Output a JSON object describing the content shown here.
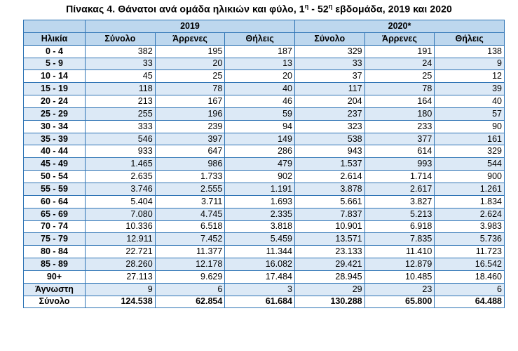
{
  "title": {
    "prefix": "Πίνακας 4. Θάνατοι ανά ομάδα ηλικιών και φύλο, 1",
    "sup1": "η",
    "middle": " - 52",
    "sup2": "η",
    "suffix": " εβδομάδα, 2019 και 2020"
  },
  "header": {
    "year1": "2019",
    "year2": "2020*",
    "age": "Ηλικία",
    "total": "Σύνολο",
    "male": "Άρρενες",
    "female": "Θήλεις"
  },
  "rows": [
    {
      "age": "0 - 4",
      "v": [
        "382",
        "195",
        "187",
        "329",
        "191",
        "138"
      ]
    },
    {
      "age": "5 - 9",
      "v": [
        "33",
        "20",
        "13",
        "33",
        "24",
        "9"
      ]
    },
    {
      "age": "10 - 14",
      "v": [
        "45",
        "25",
        "20",
        "37",
        "25",
        "12"
      ]
    },
    {
      "age": "15 - 19",
      "v": [
        "118",
        "78",
        "40",
        "117",
        "78",
        "39"
      ]
    },
    {
      "age": "20 - 24",
      "v": [
        "213",
        "167",
        "46",
        "204",
        "164",
        "40"
      ]
    },
    {
      "age": "25 - 29",
      "v": [
        "255",
        "196",
        "59",
        "237",
        "180",
        "57"
      ]
    },
    {
      "age": "30 - 34",
      "v": [
        "333",
        "239",
        "94",
        "323",
        "233",
        "90"
      ]
    },
    {
      "age": "35 - 39",
      "v": [
        "546",
        "397",
        "149",
        "538",
        "377",
        "161"
      ]
    },
    {
      "age": "40 - 44",
      "v": [
        "933",
        "647",
        "286",
        "943",
        "614",
        "329"
      ]
    },
    {
      "age": "45 - 49",
      "v": [
        "1.465",
        "986",
        "479",
        "1.537",
        "993",
        "544"
      ]
    },
    {
      "age": "50 - 54",
      "v": [
        "2.635",
        "1.733",
        "902",
        "2.614",
        "1.714",
        "900"
      ]
    },
    {
      "age": "55 - 59",
      "v": [
        "3.746",
        "2.555",
        "1.191",
        "3.878",
        "2.617",
        "1.261"
      ]
    },
    {
      "age": "60 - 64",
      "v": [
        "5.404",
        "3.711",
        "1.693",
        "5.661",
        "3.827",
        "1.834"
      ]
    },
    {
      "age": "65 - 69",
      "v": [
        "7.080",
        "4.745",
        "2.335",
        "7.837",
        "5.213",
        "2.624"
      ]
    },
    {
      "age": "70 - 74",
      "v": [
        "10.336",
        "6.518",
        "3.818",
        "10.901",
        "6.918",
        "3.983"
      ]
    },
    {
      "age": "75 - 79",
      "v": [
        "12.911",
        "7.452",
        "5.459",
        "13.571",
        "7.835",
        "5.736"
      ]
    },
    {
      "age": "80 - 84",
      "v": [
        "22.721",
        "11.377",
        "11.344",
        "23.133",
        "11.410",
        "11.723"
      ]
    },
    {
      "age": "85 - 89",
      "v": [
        "28.260",
        "12.178",
        "16.082",
        "29.421",
        "12.879",
        "16.542"
      ]
    },
    {
      "age": "90+",
      "v": [
        "27.113",
        "9.629",
        "17.484",
        "28.945",
        "10.485",
        "18.460"
      ]
    },
    {
      "age": "Άγνωστη",
      "v": [
        "9",
        "6",
        "3",
        "29",
        "23",
        "6"
      ]
    },
    {
      "age": "Σύνολο",
      "v": [
        "124.538",
        "62.854",
        "61.684",
        "130.288",
        "65.800",
        "64.488"
      ]
    }
  ],
  "colors": {
    "header_bg": "#bdd7ee",
    "alt_row_bg": "#dce9f6",
    "border": "#2e74b5"
  }
}
